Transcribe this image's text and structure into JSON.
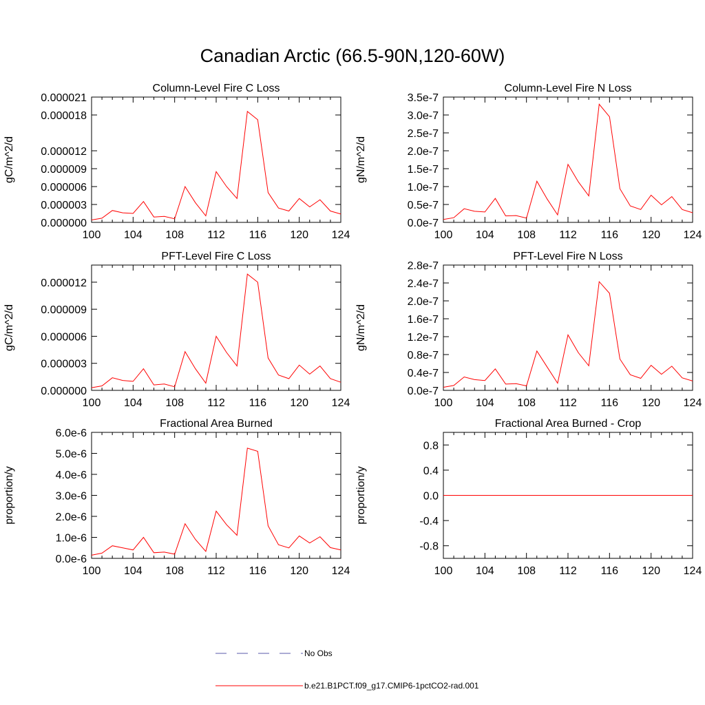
{
  "title": "Canadian Arctic (66.5-90N,120-60W)",
  "legend": [
    {
      "label": "No Obs",
      "color": "#5a5aa8",
      "style": "dashed"
    },
    {
      "label": "b.e21.B1PCT.f09_g17.CMIP6-1pctCO2-rad.001",
      "color": "#ff0000",
      "style": "solid"
    }
  ],
  "chart_data": [
    {
      "type": "line",
      "title": "Column-Level Fire C Loss",
      "ylabel": "gC/m^2/d",
      "xlim": [
        100,
        124
      ],
      "ylim": [
        0,
        2.1e-05
      ],
      "xticks": [
        100,
        104,
        108,
        112,
        116,
        120,
        124
      ],
      "xtick_labels": [
        "100",
        "104",
        "108",
        "112",
        "116",
        "120",
        "124"
      ],
      "yticks": [
        0,
        3e-06,
        6e-06,
        9e-06,
        1.2e-05,
        1.8e-05,
        2.1e-05
      ],
      "ytick_labels": [
        "0.000000",
        "0.000003",
        "0.000006",
        "0.000009",
        "0.000012",
        "0.000018",
        "0.000021"
      ],
      "series": [
        {
          "color": "#ff0000",
          "x": [
            100,
            101,
            102,
            103,
            104,
            105,
            106,
            107,
            108,
            109,
            110,
            111,
            112,
            113,
            114,
            115,
            116,
            117,
            118,
            119,
            120,
            121,
            122,
            123,
            124
          ],
          "values": [
            4e-07,
            7e-07,
            2e-06,
            1.6e-06,
            1.5e-06,
            3.5e-06,
            9e-07,
            1e-06,
            6e-07,
            6e-06,
            3.3e-06,
            1.1e-06,
            8.5e-06,
            6e-06,
            4e-06,
            1.86e-05,
            1.72e-05,
            5e-06,
            2.4e-06,
            1.9e-06,
            4e-06,
            2.6e-06,
            3.8e-06,
            1.9e-06,
            1.4e-06
          ]
        }
      ]
    },
    {
      "type": "line",
      "title": "Column-Level Fire N Loss",
      "ylabel": "gN/m^2/d",
      "xlim": [
        100,
        124
      ],
      "ylim": [
        0,
        3.5e-07
      ],
      "xticks": [
        100,
        104,
        108,
        112,
        116,
        120,
        124
      ],
      "xtick_labels": [
        "100",
        "104",
        "108",
        "112",
        "116",
        "120",
        "124"
      ],
      "yticks": [
        0,
        5e-08,
        1e-07,
        1.5e-07,
        2e-07,
        2.5e-07,
        3e-07,
        3.5e-07
      ],
      "ytick_labels": [
        "0.0e-7",
        "0.5e-7",
        "1.0e-7",
        "1.5e-7",
        "2.0e-7",
        "2.5e-7",
        "3.0e-7",
        "3.5e-7"
      ],
      "series": [
        {
          "color": "#ff0000",
          "x": [
            100,
            101,
            102,
            103,
            104,
            105,
            106,
            107,
            108,
            109,
            110,
            111,
            112,
            113,
            114,
            115,
            116,
            117,
            118,
            119,
            120,
            121,
            122,
            123,
            124
          ],
          "values": [
            8e-09,
            1.3e-08,
            3.8e-08,
            3.1e-08,
            2.9e-08,
            6.7e-08,
            1.8e-08,
            1.9e-08,
            1.2e-08,
            1.15e-07,
            6.5e-08,
            2.1e-08,
            1.62e-07,
            1.13e-07,
            7.4e-08,
            3.3e-07,
            2.95e-07,
            9.4e-08,
            4.6e-08,
            3.6e-08,
            7.6e-08,
            4.9e-08,
            7.2e-08,
            3.6e-08,
            2.7e-08
          ]
        }
      ]
    },
    {
      "type": "line",
      "title": "PFT-Level Fire C Loss",
      "ylabel": "gC/m^2/d",
      "xlim": [
        100,
        124
      ],
      "ylim": [
        0,
        1.39e-05
      ],
      "xticks": [
        100,
        104,
        108,
        112,
        116,
        120,
        124
      ],
      "xtick_labels": [
        "100",
        "104",
        "108",
        "112",
        "116",
        "120",
        "124"
      ],
      "yticks": [
        0,
        3e-06,
        6e-06,
        9e-06,
        1.2e-05
      ],
      "ytick_labels": [
        "0.000000",
        "0.000003",
        "0.000006",
        "0.000009",
        "0.000012"
      ],
      "series": [
        {
          "color": "#ff0000",
          "x": [
            100,
            101,
            102,
            103,
            104,
            105,
            106,
            107,
            108,
            109,
            110,
            111,
            112,
            113,
            114,
            115,
            116,
            117,
            118,
            119,
            120,
            121,
            122,
            123,
            124
          ],
          "values": [
            3e-07,
            5e-07,
            1.4e-06,
            1.1e-06,
            1e-06,
            2.4e-06,
            6e-07,
            7e-07,
            4e-07,
            4.3e-06,
            2.4e-06,
            8e-07,
            6e-06,
            4.2e-06,
            2.7e-06,
            1.29e-05,
            1.2e-05,
            3.6e-06,
            1.7e-06,
            1.3e-06,
            2.8e-06,
            1.8e-06,
            2.7e-06,
            1.3e-06,
            9e-07
          ]
        }
      ]
    },
    {
      "type": "line",
      "title": "PFT-Level Fire N Loss",
      "ylabel": "gN/m^2/d",
      "xlim": [
        100,
        124
      ],
      "ylim": [
        0,
        2.8e-07
      ],
      "xticks": [
        100,
        104,
        108,
        112,
        116,
        120,
        124
      ],
      "xtick_labels": [
        "100",
        "104",
        "108",
        "112",
        "116",
        "120",
        "124"
      ],
      "yticks": [
        0,
        4e-08,
        8e-08,
        1.2e-07,
        1.6e-07,
        2e-07,
        2.4e-07,
        2.8e-07
      ],
      "ytick_labels": [
        "0.0e-7",
        "0.4e-7",
        "0.8e-7",
        "1.2e-7",
        "1.6e-7",
        "2.0e-7",
        "2.4e-7",
        "2.8e-7"
      ],
      "series": [
        {
          "color": "#ff0000",
          "x": [
            100,
            101,
            102,
            103,
            104,
            105,
            106,
            107,
            108,
            109,
            110,
            111,
            112,
            113,
            114,
            115,
            116,
            117,
            118,
            119,
            120,
            121,
            122,
            123,
            124
          ],
          "values": [
            7e-09,
            1.1e-08,
            3e-08,
            2.4e-08,
            2.2e-08,
            4.8e-08,
            1.4e-08,
            1.5e-08,
            1e-08,
            8.8e-08,
            5.2e-08,
            1.6e-08,
            1.24e-07,
            8.4e-08,
            5.5e-08,
            2.43e-07,
            2.17e-07,
            7e-08,
            3.5e-08,
            2.7e-08,
            5.6e-08,
            3.6e-08,
            5.4e-08,
            2.8e-08,
            2.1e-08
          ]
        }
      ]
    },
    {
      "type": "line",
      "title": "Fractional Area Burned",
      "ylabel": "proportion/y",
      "xlim": [
        100,
        124
      ],
      "ylim": [
        0,
        6e-06
      ],
      "xticks": [
        100,
        104,
        108,
        112,
        116,
        120,
        124
      ],
      "xtick_labels": [
        "100",
        "104",
        "108",
        "112",
        "116",
        "120",
        "124"
      ],
      "yticks": [
        0,
        1e-06,
        2e-06,
        3e-06,
        4e-06,
        5e-06,
        6e-06
      ],
      "ytick_labels": [
        "0.0e-6",
        "1.0e-6",
        "2.0e-6",
        "3.0e-6",
        "4.0e-6",
        "5.0e-6",
        "6.0e-6"
      ],
      "series": [
        {
          "color": "#ff0000",
          "x": [
            100,
            101,
            102,
            103,
            104,
            105,
            106,
            107,
            108,
            109,
            110,
            111,
            112,
            113,
            114,
            115,
            116,
            117,
            118,
            119,
            120,
            121,
            122,
            123,
            124
          ],
          "values": [
            1.5e-07,
            2.5e-07,
            6e-07,
            5e-07,
            4e-07,
            1e-06,
            2.7e-07,
            3e-07,
            2e-07,
            1.65e-06,
            9e-07,
            3.3e-07,
            2.25e-06,
            1.6e-06,
            1.1e-06,
            5.25e-06,
            5.1e-06,
            1.55e-06,
            6.5e-07,
            5e-07,
            1.07e-06,
            7.3e-07,
            1.03e-06,
            5.1e-07,
            4e-07
          ]
        }
      ]
    },
    {
      "type": "line",
      "title": "Fractional Area Burned - Crop",
      "ylabel": "proportion/y",
      "xlim": [
        100,
        124
      ],
      "ylim": [
        -1,
        1
      ],
      "xticks": [
        100,
        104,
        108,
        112,
        116,
        120,
        124
      ],
      "xtick_labels": [
        "100",
        "104",
        "108",
        "112",
        "116",
        "120",
        "124"
      ],
      "yticks": [
        -0.8,
        -0.4,
        0,
        0.4,
        0.8
      ],
      "ytick_labels": [
        "-0.8",
        "-0.4",
        "0.0",
        "0.4",
        "0.8"
      ],
      "series": [
        {
          "color": "#ff0000",
          "x": [
            100,
            124
          ],
          "values": [
            0,
            0
          ]
        }
      ]
    }
  ]
}
